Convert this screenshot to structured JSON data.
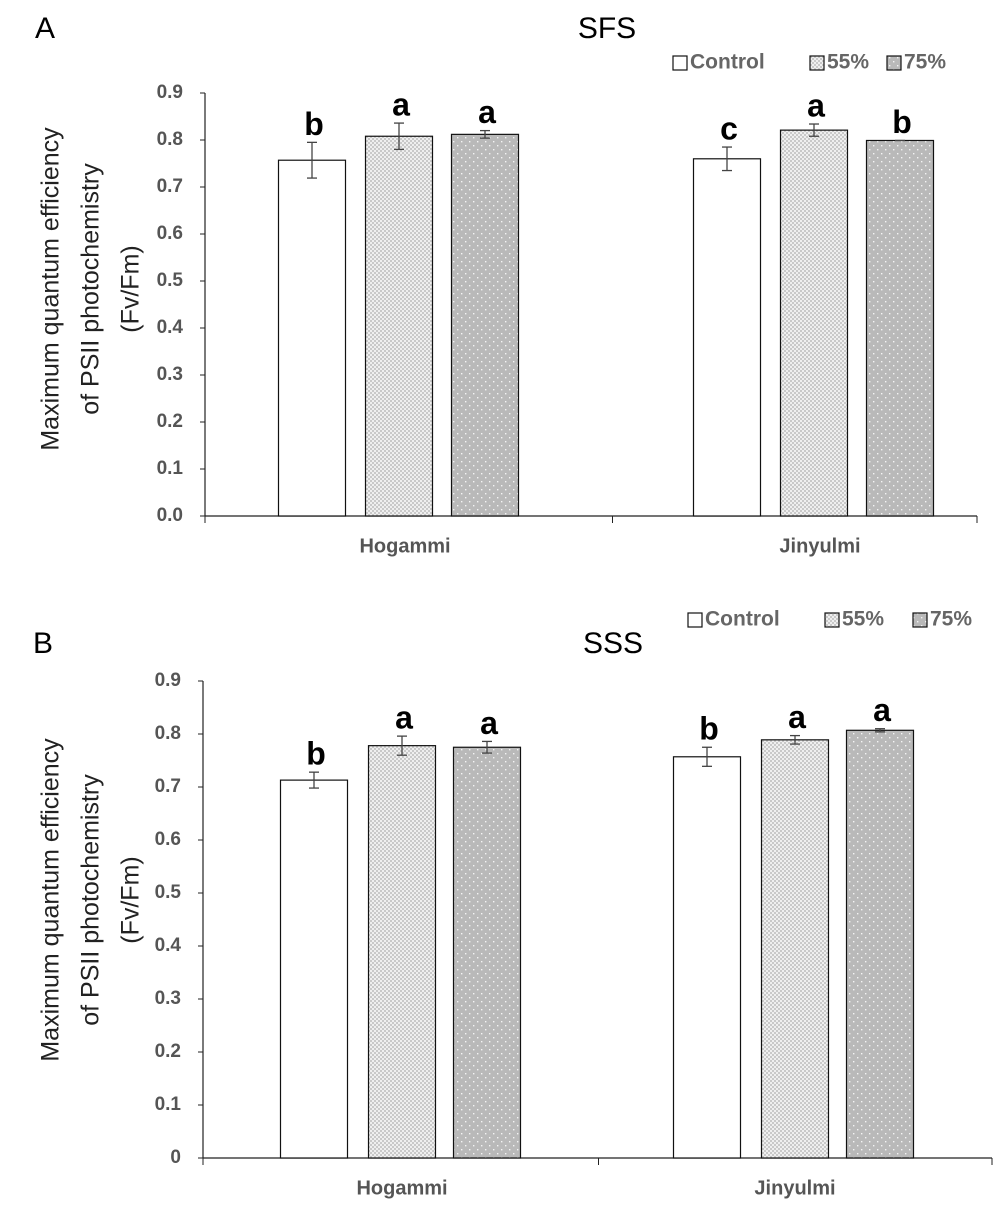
{
  "chart_data": [
    {
      "type": "bar",
      "panel": "A",
      "title": "SFS",
      "ylabel_lines": [
        "Maximum quantum efficiency",
        "of PSII photochemistry",
        "(Fv/Fm)"
      ],
      "xlabel": "",
      "ylim": [
        0,
        0.9
      ],
      "yticks": [
        "0.0",
        "0.1",
        "0.2",
        "0.3",
        "0.4",
        "0.5",
        "0.6",
        "0.7",
        "0.8",
        "0.9"
      ],
      "categories": [
        "Hogammi",
        "Jinyulmi"
      ],
      "series": [
        {
          "name": "Control",
          "values": [
            0.757,
            0.76
          ],
          "errors": [
            0.038,
            0.025
          ],
          "labels": [
            "b",
            "c"
          ]
        },
        {
          "name": "55%",
          "values": [
            0.808,
            0.821
          ],
          "errors": [
            0.028,
            0.013
          ],
          "labels": [
            "a",
            "a"
          ]
        },
        {
          "name": "75%",
          "values": [
            0.812,
            0.799
          ],
          "errors": [
            0.008,
            0.0
          ],
          "labels": [
            "a",
            "b"
          ]
        }
      ],
      "legend_position": "top-right"
    },
    {
      "type": "bar",
      "panel": "B",
      "title": "SSS",
      "ylabel_lines": [
        "Maximum quantum efficiency",
        "of PSII photochemistry",
        "(Fv/Fm)"
      ],
      "xlabel": "",
      "ylim": [
        0,
        0.9
      ],
      "yticks": [
        "0",
        "0.1",
        "0.2",
        "0.3",
        "0.4",
        "0.5",
        "0.6",
        "0.7",
        "0.8",
        "0.9"
      ],
      "categories": [
        "Hogammi",
        "Jinyulmi"
      ],
      "series": [
        {
          "name": "Control",
          "values": [
            0.713,
            0.757
          ],
          "errors": [
            0.015,
            0.018
          ],
          "labels": [
            "b",
            "b"
          ]
        },
        {
          "name": "55%",
          "values": [
            0.778,
            0.789
          ],
          "errors": [
            0.018,
            0.008
          ],
          "labels": [
            "a",
            "a"
          ]
        },
        {
          "name": "75%",
          "values": [
            0.775,
            0.807
          ],
          "errors": [
            0.011,
            0.003
          ],
          "labels": [
            "a",
            "a"
          ]
        }
      ],
      "legend_position": "top-right"
    }
  ]
}
